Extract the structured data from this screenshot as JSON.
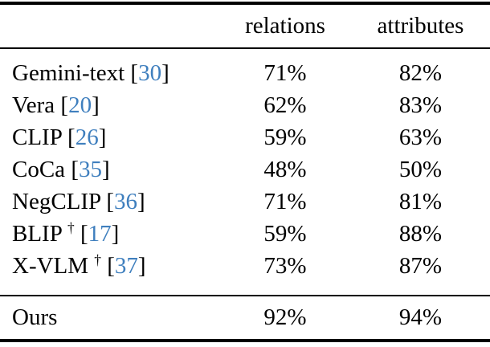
{
  "accent_color": "#3F7FBE",
  "text_color": "#000000",
  "table": {
    "columns": [
      "relations",
      "attributes"
    ],
    "cite_brackets": [
      "[",
      "]"
    ],
    "rows": [
      {
        "method": "Gemini-text",
        "dagger": "",
        "cite": "30",
        "relations": "71%",
        "attributes": "82%"
      },
      {
        "method": "Vera",
        "dagger": "",
        "cite": "20",
        "relations": "62%",
        "attributes": "83%"
      },
      {
        "method": "CLIP",
        "dagger": "",
        "cite": "26",
        "relations": "59%",
        "attributes": "63%"
      },
      {
        "method": "CoCa",
        "dagger": "",
        "cite": "35",
        "relations": "48%",
        "attributes": "50%"
      },
      {
        "method": "NegCLIP",
        "dagger": "",
        "cite": "36",
        "relations": "71%",
        "attributes": "81%"
      },
      {
        "method": "BLIP",
        "dagger": "†",
        "cite": "17",
        "relations": "59%",
        "attributes": "88%"
      },
      {
        "method": "X-VLM",
        "dagger": "†",
        "cite": "37",
        "relations": "73%",
        "attributes": "87%"
      }
    ],
    "footer": {
      "method": "Ours",
      "relations": "92%",
      "attributes": "94%"
    }
  }
}
